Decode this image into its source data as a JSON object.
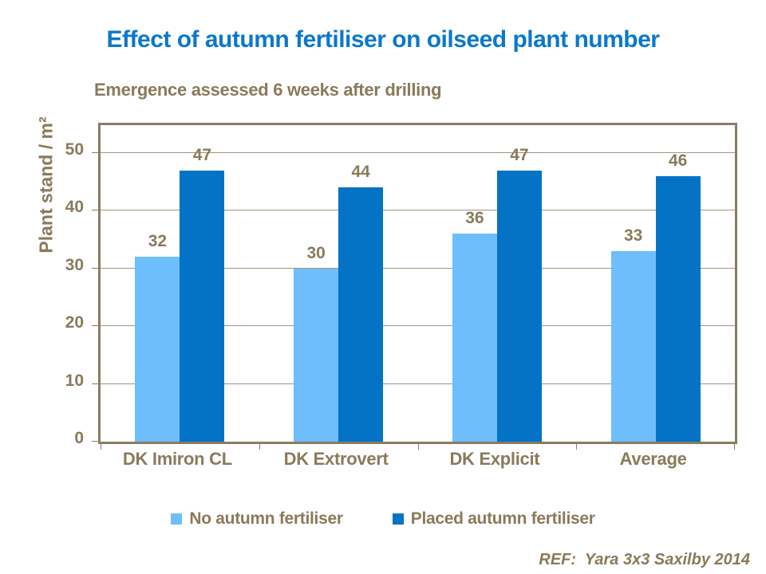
{
  "title": {
    "text": "Effect of autumn fertiliser on oilseed plant number"
  },
  "subtitle": {
    "text": "Emergence assessed 6 weeks after drilling"
  },
  "footer": {
    "ref_text": "REF:  Yara 3x3 Saxilby 2014"
  },
  "colors": {
    "background": "#ffffff",
    "title_blue": "#0a78cc",
    "text_brown": "#8a7a5c",
    "axis_brown": "#8a7b63",
    "grid_brown": "#a3947e",
    "series_light_blue": "#6ebefc",
    "series_dark_blue": "#0473c5"
  },
  "chart_data": {
    "type": "bar",
    "title": "Effect of autumn fertiliser on oilseed plant number",
    "subtitle": "Emergence assessed 6 weeks after drilling",
    "categories": [
      "DK Imiron CL",
      "DK Extrovert",
      "DK Explicit",
      "Average"
    ],
    "series": [
      {
        "name": "No autumn fertiliser",
        "color": "#6ebefc",
        "values": [
          32,
          30,
          36,
          33
        ]
      },
      {
        "name": "Placed autumn fertiliser",
        "color": "#0473c5",
        "values": [
          47,
          44,
          47,
          46
        ]
      }
    ],
    "xlabel": "",
    "ylabel": "Plant stand / m²",
    "yticks": [
      0,
      10,
      20,
      30,
      40,
      50
    ],
    "ylim": [
      0,
      54.8
    ],
    "grid": true,
    "data_labels": true,
    "legend_position": "bottom"
  }
}
